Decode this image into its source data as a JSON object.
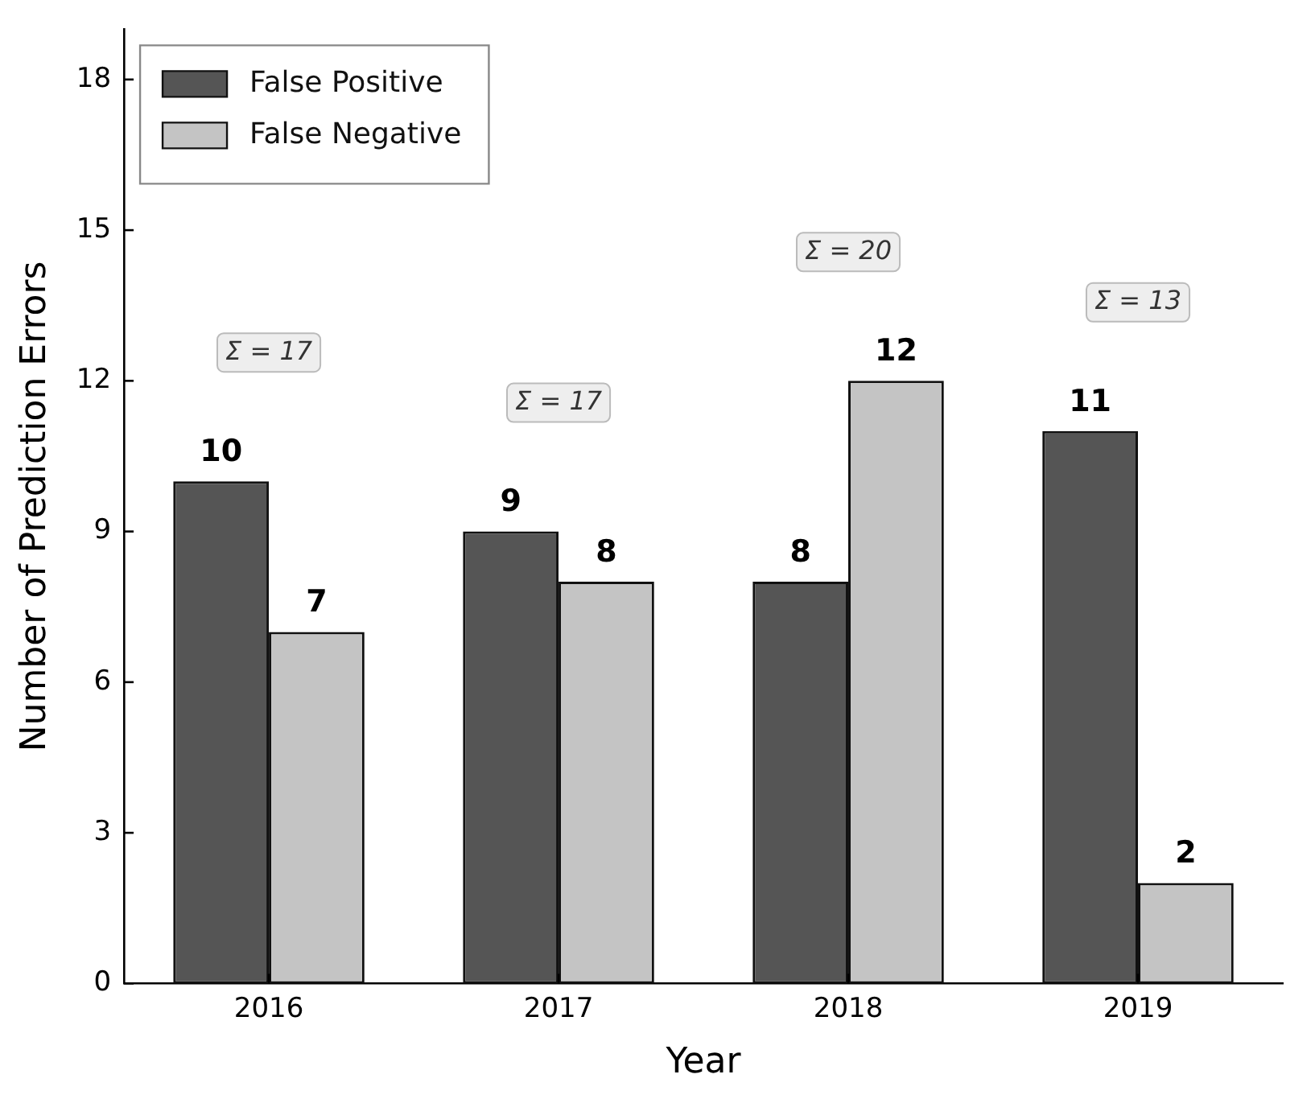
{
  "chart_data": {
    "type": "bar",
    "xlabel": "Year",
    "ylabel": "Number of Prediction Errors",
    "categories": [
      "2016",
      "2017",
      "2018",
      "2019"
    ],
    "series": [
      {
        "name": "False Positive",
        "color": "#555555",
        "values": [
          10,
          9,
          8,
          11
        ]
      },
      {
        "name": "False Negative",
        "color": "#c4c4c4",
        "values": [
          7,
          8,
          12,
          2
        ]
      }
    ],
    "ylim": [
      0,
      19
    ],
    "yticks": [
      0,
      3,
      6,
      9,
      12,
      15,
      18
    ],
    "data_labels": true,
    "legend": "top left",
    "grid": false,
    "annotations": [
      "Σ = 17",
      "Σ = 17",
      "Σ = 20",
      "Σ = 13"
    ]
  }
}
